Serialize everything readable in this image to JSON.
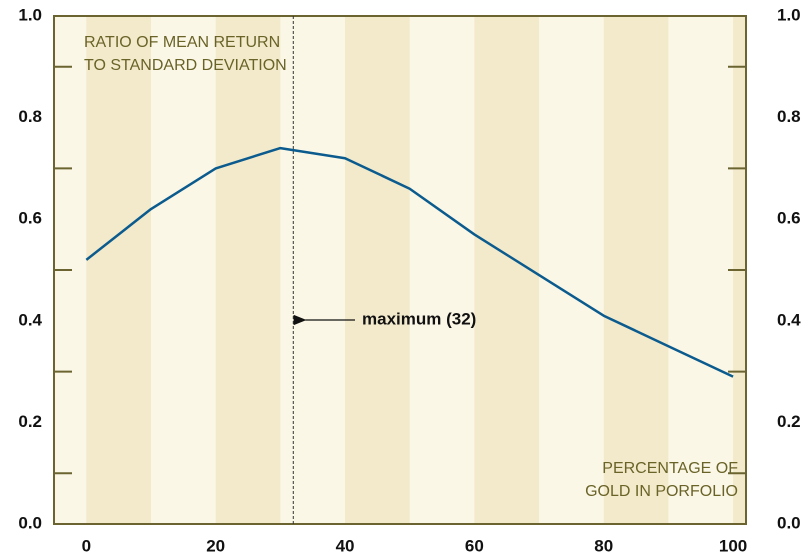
{
  "chart_data": {
    "type": "line",
    "ylabel": [
      "RATIO OF MEAN RETURN",
      "TO STANDARD DEVIATION"
    ],
    "xlabel": [
      "PERCENTAGE OF",
      "GOLD IN PORFOLIO"
    ],
    "x": [
      0,
      10,
      20,
      30,
      40,
      50,
      60,
      70,
      80,
      90,
      100
    ],
    "series": [
      {
        "color": "#0b5b8e",
        "values": [
          0.52,
          0.62,
          0.7,
          0.74,
          0.72,
          0.66,
          0.57,
          0.49,
          0.41,
          0.35,
          0.29
        ]
      }
    ],
    "xlim": [
      -5,
      102
    ],
    "ylim": [
      0,
      1.0
    ],
    "xticks": [
      0,
      20,
      40,
      60,
      80,
      100
    ],
    "yticks": [
      {
        "value": 0,
        "label": "0.0"
      },
      0.2,
      0.4,
      0.6,
      0.8,
      {
        "value": 1.0,
        "label": "1.0"
      }
    ],
    "yminorticks": [
      0.1,
      0.3,
      0.5,
      0.7,
      0.9
    ],
    "annotation": {
      "x": 32,
      "text": "maximum (32)"
    }
  }
}
